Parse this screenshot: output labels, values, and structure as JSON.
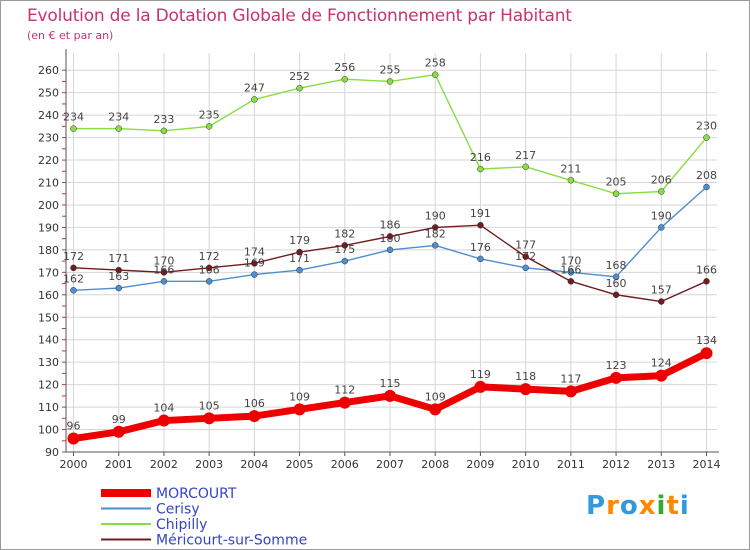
{
  "title": "Evolution de la Dotation Globale de Fonctionnement par Habitant",
  "subtitle": "(en € et par an)",
  "logo_text": "Proxiti",
  "colors": {
    "title": "#c8326e",
    "grid": "#d6d6d6",
    "axis": "#555555",
    "MORCOURT": "#ee0000",
    "Cerisy": "#4d8ed0",
    "Chipilly": "#88dd44",
    "Mericourt": "#6e1e1e"
  },
  "chart_data": {
    "type": "line",
    "title": "Evolution de la Dotation Globale de Fonctionnement par Habitant",
    "subtitle": "(en € et par an)",
    "xlabel": "",
    "ylabel": "",
    "x": [
      "2000",
      "2001",
      "2002",
      "2003",
      "2004",
      "2005",
      "2006",
      "2007",
      "2008",
      "2009",
      "2010",
      "2011",
      "2012",
      "2013",
      "2014"
    ],
    "ylim": [
      90,
      265
    ],
    "yticks": [
      90,
      100,
      110,
      120,
      130,
      140,
      150,
      160,
      170,
      180,
      190,
      200,
      210,
      220,
      230,
      240,
      250,
      260
    ],
    "grid": true,
    "legend_position": "bottom-left",
    "series": [
      {
        "name": "MORCOURT",
        "color": "#ee0000",
        "emphasis": true,
        "values": [
          96,
          99,
          104,
          105,
          106,
          109,
          112,
          115,
          109,
          119,
          118,
          117,
          123,
          124,
          134
        ]
      },
      {
        "name": "Cerisy",
        "color": "#4d8ed0",
        "emphasis": false,
        "values": [
          162,
          163,
          166,
          166,
          169,
          171,
          175,
          180,
          182,
          176,
          172,
          170,
          168,
          190,
          208
        ]
      },
      {
        "name": "Chipilly",
        "color": "#88dd44",
        "emphasis": false,
        "values": [
          234,
          234,
          233,
          235,
          247,
          252,
          256,
          255,
          258,
          216,
          217,
          211,
          205,
          206,
          230
        ]
      },
      {
        "name": "Méricourt-sur-Somme",
        "color": "#6e1e1e",
        "emphasis": false,
        "values": [
          172,
          171,
          170,
          172,
          174,
          179,
          182,
          186,
          190,
          191,
          177,
          166,
          160,
          157,
          166
        ]
      }
    ]
  }
}
